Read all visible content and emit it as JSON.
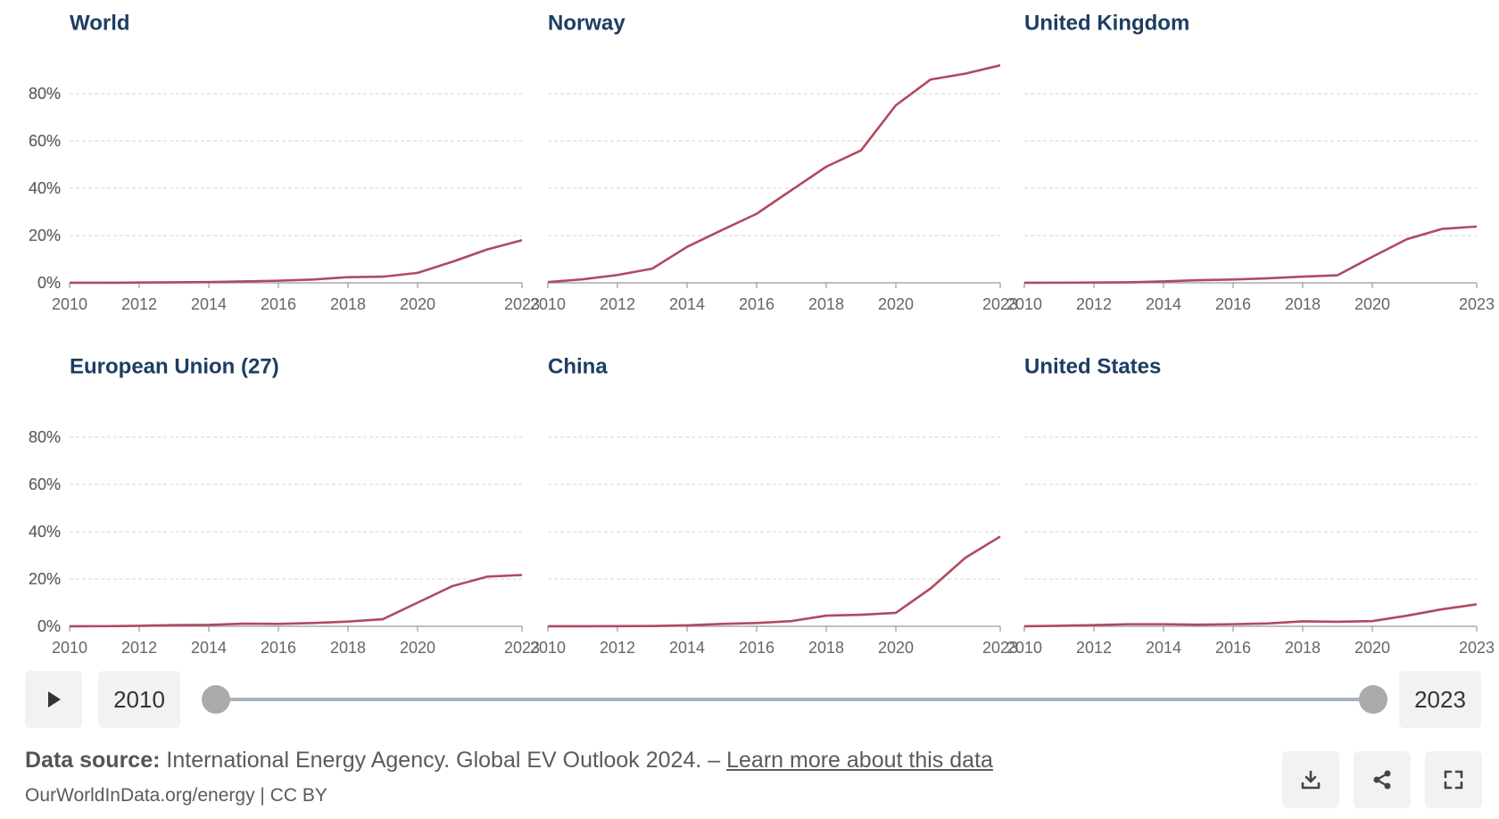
{
  "chart_data": {
    "type": "line",
    "ylim": [
      0,
      100
    ],
    "y_ticks": [
      0,
      20,
      40,
      60,
      80
    ],
    "y_tick_labels": [
      "0%",
      "20%",
      "40%",
      "60%",
      "80%"
    ],
    "x_tick_labels": [
      "2010",
      "2012",
      "2014",
      "2016",
      "2018",
      "2020",
      "2023"
    ],
    "xlim": [
      2010,
      2023
    ],
    "grid": true,
    "color": "#b04a5f",
    "x": [
      2010,
      2011,
      2012,
      2013,
      2014,
      2015,
      2016,
      2017,
      2018,
      2019,
      2020,
      2021,
      2022,
      2023
    ],
    "panels": [
      {
        "title": "World",
        "values": [
          0.01,
          0.02,
          0.1,
          0.2,
          0.3,
          0.6,
          0.9,
          1.4,
          2.4,
          2.6,
          4.2,
          8.9,
          14.1,
          18
        ]
      },
      {
        "title": "Norway",
        "values": [
          0.3,
          1.5,
          3.3,
          6,
          15.2,
          22.3,
          29.2,
          39.2,
          49.1,
          56,
          75.1,
          86,
          88.5,
          92
        ]
      },
      {
        "title": "United Kingdom",
        "values": [
          0.01,
          0.05,
          0.1,
          0.2,
          0.6,
          1.1,
          1.4,
          1.9,
          2.6,
          3.2,
          11,
          18.5,
          22.8,
          23.8
        ]
      },
      {
        "title": "European Union (27)",
        "values": [
          0.01,
          0.05,
          0.2,
          0.5,
          0.6,
          1.1,
          1,
          1.4,
          2,
          3,
          10,
          17,
          21,
          21.7
        ]
      },
      {
        "title": "China",
        "values": [
          0.01,
          0.03,
          0.08,
          0.1,
          0.4,
          1,
          1.4,
          2.2,
          4.5,
          4.9,
          5.7,
          16,
          29,
          38
        ]
      },
      {
        "title": "United States",
        "values": [
          0.01,
          0.2,
          0.5,
          0.9,
          0.9,
          0.7,
          0.9,
          1.2,
          2.1,
          1.9,
          2.2,
          4.5,
          7.2,
          9.3
        ]
      }
    ]
  },
  "timeline": {
    "start_year": "2010",
    "end_year": "2023",
    "play_icon": "play-icon"
  },
  "footer": {
    "source_label": "Data source:",
    "source_text": " International Energy Agency. Global EV Outlook 2024. – ",
    "learn_more": "Learn more about this data",
    "credit": "OurWorldInData.org/energy | CC BY",
    "download_icon": "download-icon",
    "share_icon": "share-icon",
    "fullscreen_icon": "fullscreen-icon"
  }
}
